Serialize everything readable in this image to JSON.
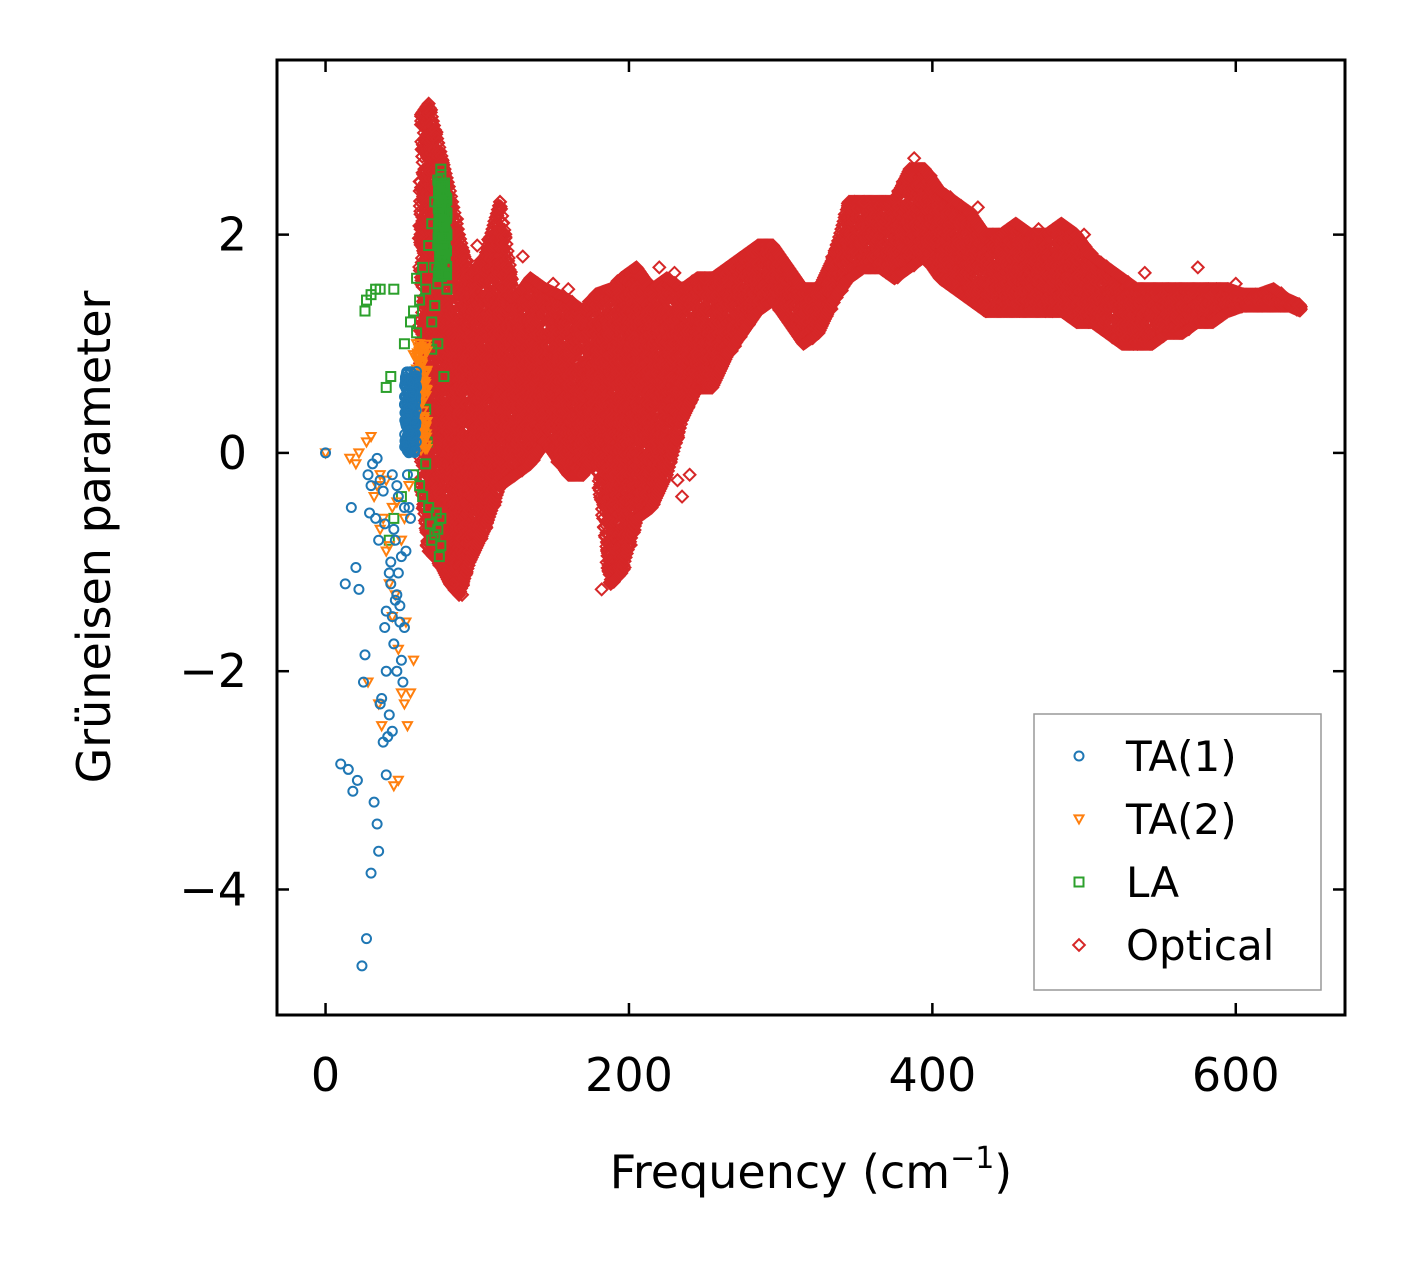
{
  "chart_data": {
    "type": "scatter",
    "xlabel": "Frequency (cm",
    "xlabel_sup": "−1",
    "xlabel_close": ")",
    "ylabel": "Grüneisen parameter",
    "xlim": [
      -32,
      672
    ],
    "ylim": [
      -5.15,
      3.6
    ],
    "x_ticks": [
      0,
      200,
      400,
      600
    ],
    "x_tick_labels": [
      "0",
      "200",
      "400",
      "600"
    ],
    "y_ticks": [
      -4,
      -2,
      0,
      2
    ],
    "y_tick_labels": [
      "−4",
      "−2",
      "0",
      "2"
    ],
    "grid": false,
    "legend_position": "bottom-right",
    "series": [
      {
        "name": "TA(1)",
        "marker": "circle",
        "color": "#1f77b4",
        "points": [
          [
            0,
            0
          ],
          [
            13,
            -1.2
          ],
          [
            17,
            -0.5
          ],
          [
            20,
            -1.05
          ],
          [
            22,
            -1.25
          ],
          [
            25,
            -2.1
          ],
          [
            26,
            -1.85
          ],
          [
            27,
            -4.45
          ],
          [
            24,
            -4.7
          ],
          [
            30,
            -3.85
          ],
          [
            32,
            -3.2
          ],
          [
            34,
            -3.4
          ],
          [
            35,
            -3.65
          ],
          [
            36,
            -2.3
          ],
          [
            37,
            -2.25
          ],
          [
            38,
            -2.65
          ],
          [
            39,
            -1.6
          ],
          [
            40,
            -2.0
          ],
          [
            41,
            -2.6
          ],
          [
            42,
            -1.1
          ],
          [
            43,
            -1.0
          ],
          [
            44,
            -1.5
          ],
          [
            45,
            -0.7
          ],
          [
            46,
            -0.8
          ],
          [
            47,
            -1.3
          ],
          [
            48,
            -0.4
          ],
          [
            49,
            -1.4
          ],
          [
            50,
            -1.9
          ],
          [
            51,
            -2.1
          ],
          [
            52,
            -1.6
          ],
          [
            53,
            -0.9
          ],
          [
            54,
            -0.2
          ],
          [
            55,
            -0.5
          ],
          [
            56,
            -0.6
          ],
          [
            10,
            -2.85
          ],
          [
            15,
            -2.9
          ],
          [
            18,
            -3.1
          ],
          [
            21,
            -3.0
          ],
          [
            28,
            -0.2
          ],
          [
            30,
            -0.3
          ],
          [
            31,
            -0.1
          ],
          [
            33,
            -0.6
          ],
          [
            35,
            -0.8
          ],
          [
            38,
            -0.35
          ],
          [
            40,
            -1.45
          ],
          [
            42,
            -2.4
          ],
          [
            44,
            -2.55
          ],
          [
            46,
            -1.35
          ],
          [
            48,
            -1.1
          ],
          [
            50,
            -0.95
          ],
          [
            40,
            -2.95
          ],
          [
            36,
            -0.25
          ],
          [
            44,
            -0.2
          ],
          [
            52,
            -0.5
          ],
          [
            47,
            -0.3
          ],
          [
            29,
            -0.55
          ],
          [
            34,
            -0.05
          ],
          [
            39,
            -0.65
          ],
          [
            43,
            -1.2
          ],
          [
            49,
            -1.55
          ],
          [
            45,
            -1.75
          ],
          [
            47,
            -2.0
          ]
        ],
        "cluster": {
          "x_center": 56,
          "x_spread": 4,
          "y_min": 0.0,
          "y_max": 0.75,
          "count": 180
        }
      },
      {
        "name": "TA(2)",
        "marker": "triangle-down",
        "color": "#ff7f0e",
        "points": [
          [
            0,
            0
          ],
          [
            16,
            -0.05
          ],
          [
            20,
            -0.1
          ],
          [
            22,
            0.0
          ],
          [
            27,
            0.1
          ],
          [
            30,
            0.15
          ],
          [
            32,
            -0.4
          ],
          [
            34,
            -0.3
          ],
          [
            36,
            -0.2
          ],
          [
            38,
            -0.6
          ],
          [
            40,
            -0.9
          ],
          [
            42,
            -1.2
          ],
          [
            44,
            -1.5
          ],
          [
            46,
            -1.3
          ],
          [
            48,
            -1.8
          ],
          [
            50,
            -2.2
          ],
          [
            52,
            -2.3
          ],
          [
            54,
            -2.5
          ],
          [
            56,
            -2.2
          ],
          [
            58,
            -1.9
          ],
          [
            28,
            -2.1
          ],
          [
            35,
            -2.3
          ],
          [
            37,
            -2.5
          ],
          [
            45,
            -3.05
          ],
          [
            48,
            -3.0
          ],
          [
            50,
            -0.8
          ],
          [
            55,
            -0.3
          ],
          [
            60,
            0.2
          ],
          [
            62,
            0.5
          ],
          [
            58,
            0.9
          ],
          [
            60,
            1.0
          ],
          [
            55,
            0.1
          ],
          [
            44,
            -0.5
          ],
          [
            52,
            -0.6
          ],
          [
            40,
            -0.25
          ],
          [
            36,
            -0.7
          ],
          [
            42,
            -0.85
          ],
          [
            47,
            -0.45
          ],
          [
            53,
            -1.55
          ]
        ],
        "cluster": {
          "x_center": 63,
          "x_spread": 4,
          "y_min": 0.0,
          "y_max": 1.0,
          "count": 120
        }
      },
      {
        "name": "LA",
        "marker": "square",
        "color": "#2ca02c",
        "points": [
          [
            26,
            1.3
          ],
          [
            27,
            1.4
          ],
          [
            30,
            1.45
          ],
          [
            33,
            1.5
          ],
          [
            36,
            1.5
          ],
          [
            40,
            0.6
          ],
          [
            43,
            0.7
          ],
          [
            45,
            1.5
          ],
          [
            52,
            1.0
          ],
          [
            56,
            1.2
          ],
          [
            58,
            1.3
          ],
          [
            60,
            1.6
          ],
          [
            62,
            1.4
          ],
          [
            64,
            1.7
          ],
          [
            66,
            1.5
          ],
          [
            68,
            1.9
          ],
          [
            70,
            2.1
          ],
          [
            72,
            2.3
          ],
          [
            74,
            2.5
          ],
          [
            76,
            2.6
          ],
          [
            78,
            2.4
          ],
          [
            80,
            2.2
          ],
          [
            80,
            1.5
          ],
          [
            78,
            0.7
          ],
          [
            76,
            -0.6
          ],
          [
            74,
            -0.7
          ],
          [
            72,
            -0.75
          ],
          [
            70,
            -0.8
          ],
          [
            69,
            -0.65
          ],
          [
            75,
            -0.95
          ],
          [
            58,
            -0.2
          ],
          [
            62,
            -0.3
          ],
          [
            65,
            0.2
          ],
          [
            66,
            -0.1
          ],
          [
            68,
            -0.5
          ],
          [
            60,
            0.5
          ],
          [
            70,
            1.2
          ],
          [
            74,
            1.0
          ],
          [
            78,
            1.8
          ],
          [
            80,
            2.0
          ],
          [
            76,
            2.3
          ],
          [
            72,
            1.7
          ],
          [
            64,
            -0.4
          ],
          [
            67,
            0.1
          ],
          [
            42,
            -0.8
          ],
          [
            45,
            -0.6
          ],
          [
            50,
            -0.4
          ],
          [
            78,
            2.45
          ],
          [
            76,
            2.55
          ],
          [
            74,
            1.55
          ],
          [
            72,
            1.35
          ],
          [
            70,
            0.95
          ],
          [
            66,
            0.4
          ],
          [
            62,
            0.7
          ],
          [
            60,
            1.1
          ],
          [
            76,
            -0.85
          ],
          [
            73,
            -0.55
          ]
        ],
        "cluster": {
          "x_center": 77,
          "x_spread": 3,
          "y_min": 1.6,
          "y_max": 2.5,
          "count": 140
        }
      },
      {
        "name": "Optical",
        "marker": "diamond",
        "color": "#d62728",
        "envelope": [
          [
            63,
            -0.3,
            3.1
          ],
          [
            68,
            -0.9,
            3.2
          ],
          [
            75,
            -1.0,
            2.8
          ],
          [
            82,
            -1.2,
            2.4
          ],
          [
            88,
            -1.3,
            2.0
          ],
          [
            95,
            -1.0,
            1.6
          ],
          [
            105,
            -0.7,
            1.8
          ],
          [
            115,
            -0.3,
            2.3
          ],
          [
            125,
            -0.2,
            1.4
          ],
          [
            135,
            -0.1,
            1.6
          ],
          [
            145,
            0.1,
            1.5
          ],
          [
            160,
            -0.2,
            1.4
          ],
          [
            170,
            -0.2,
            1.3
          ],
          [
            178,
            0.0,
            1.45
          ],
          [
            188,
            -1.2,
            1.5
          ],
          [
            195,
            -1.1,
            1.6
          ],
          [
            205,
            -0.6,
            1.7
          ],
          [
            215,
            -0.5,
            1.5
          ],
          [
            225,
            -0.2,
            1.6
          ],
          [
            235,
            0.3,
            1.5
          ],
          [
            245,
            0.6,
            1.6
          ],
          [
            255,
            0.6,
            1.6
          ],
          [
            265,
            0.9,
            1.7
          ],
          [
            275,
            1.1,
            1.8
          ],
          [
            285,
            1.3,
            1.9
          ],
          [
            295,
            1.4,
            1.9
          ],
          [
            305,
            1.2,
            1.7
          ],
          [
            315,
            1.0,
            1.5
          ],
          [
            325,
            1.1,
            1.5
          ],
          [
            335,
            1.4,
            1.8
          ],
          [
            345,
            1.6,
            2.3
          ],
          [
            355,
            1.7,
            2.3
          ],
          [
            365,
            1.7,
            2.3
          ],
          [
            375,
            1.6,
            2.3
          ],
          [
            385,
            1.7,
            2.6
          ],
          [
            395,
            1.8,
            2.6
          ],
          [
            405,
            1.6,
            2.4
          ],
          [
            415,
            1.5,
            2.3
          ],
          [
            425,
            1.4,
            2.2
          ],
          [
            435,
            1.3,
            2.0
          ],
          [
            445,
            1.3,
            2.0
          ],
          [
            455,
            1.3,
            2.1
          ],
          [
            465,
            1.3,
            2.0
          ],
          [
            475,
            1.3,
            2.0
          ],
          [
            485,
            1.3,
            2.1
          ],
          [
            495,
            1.2,
            2.0
          ],
          [
            505,
            1.2,
            1.8
          ],
          [
            515,
            1.1,
            1.7
          ],
          [
            525,
            1.0,
            1.6
          ],
          [
            535,
            1.0,
            1.5
          ],
          [
            545,
            1.0,
            1.5
          ],
          [
            555,
            1.1,
            1.5
          ],
          [
            565,
            1.1,
            1.5
          ],
          [
            575,
            1.2,
            1.5
          ],
          [
            585,
            1.2,
            1.5
          ],
          [
            595,
            1.3,
            1.5
          ],
          [
            605,
            1.35,
            1.45
          ],
          [
            615,
            1.35,
            1.45
          ],
          [
            625,
            1.35,
            1.5
          ],
          [
            635,
            1.35,
            1.4
          ],
          [
            643,
            1.3,
            1.35
          ]
        ],
        "outliers": [
          [
            90,
            -1.3
          ],
          [
            84,
            -1.2
          ],
          [
            100,
            1.9
          ],
          [
            115,
            2.3
          ],
          [
            235,
            -0.4
          ],
          [
            232,
            -0.25
          ],
          [
            575,
            1.7
          ],
          [
            388,
            2.7
          ],
          [
            220,
            1.7
          ],
          [
            160,
            1.5
          ],
          [
            182,
            -1.25
          ],
          [
            240,
            -0.2
          ],
          [
            120,
            1.7
          ],
          [
            130,
            1.8
          ],
          [
            150,
            1.55
          ],
          [
            540,
            1.65
          ],
          [
            470,
            2.05
          ],
          [
            500,
            2.0
          ],
          [
            430,
            2.25
          ],
          [
            355,
            2.3
          ],
          [
            600,
            1.55
          ],
          [
            230,
            1.65
          ],
          [
            250,
            1.6
          ]
        ]
      }
    ]
  }
}
